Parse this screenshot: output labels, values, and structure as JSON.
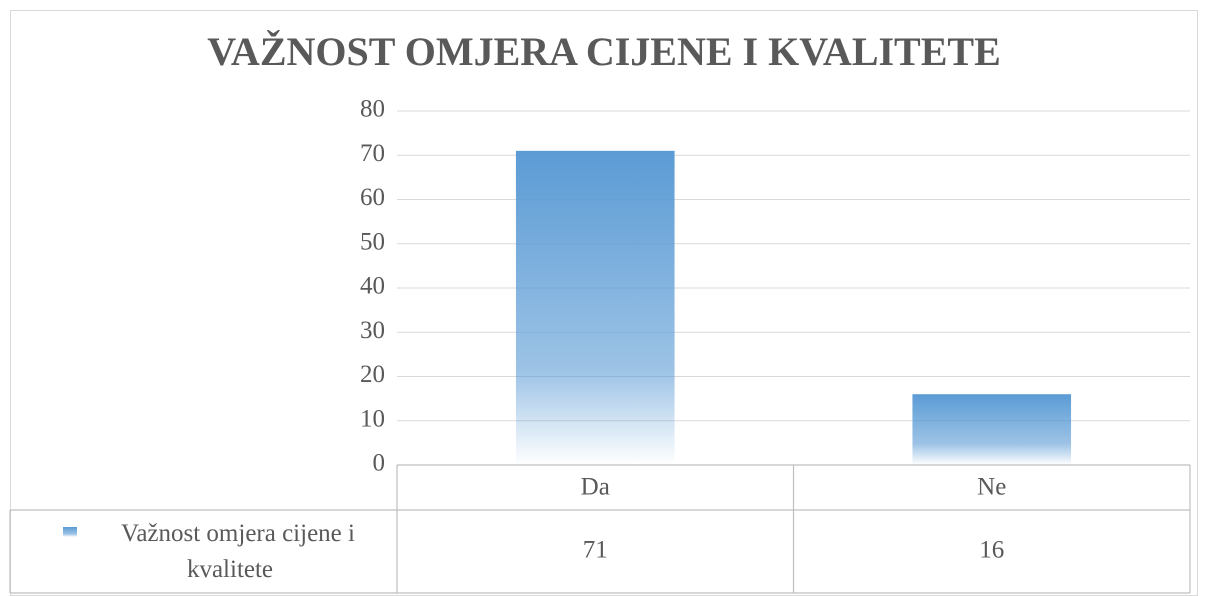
{
  "chart_data": {
    "type": "bar",
    "title": "VAŽNOST OMJERA CIJENE I KVALITETE",
    "categories": [
      "Da",
      "Ne"
    ],
    "series": [
      {
        "name": "Važnost omjera cijene i kvalitete",
        "color": "#5b9bd5",
        "values": [
          71,
          16
        ]
      }
    ],
    "ylim": [
      0,
      80
    ],
    "yticks": [
      0,
      10,
      20,
      30,
      40,
      50,
      60,
      70,
      80
    ],
    "grid": true
  }
}
